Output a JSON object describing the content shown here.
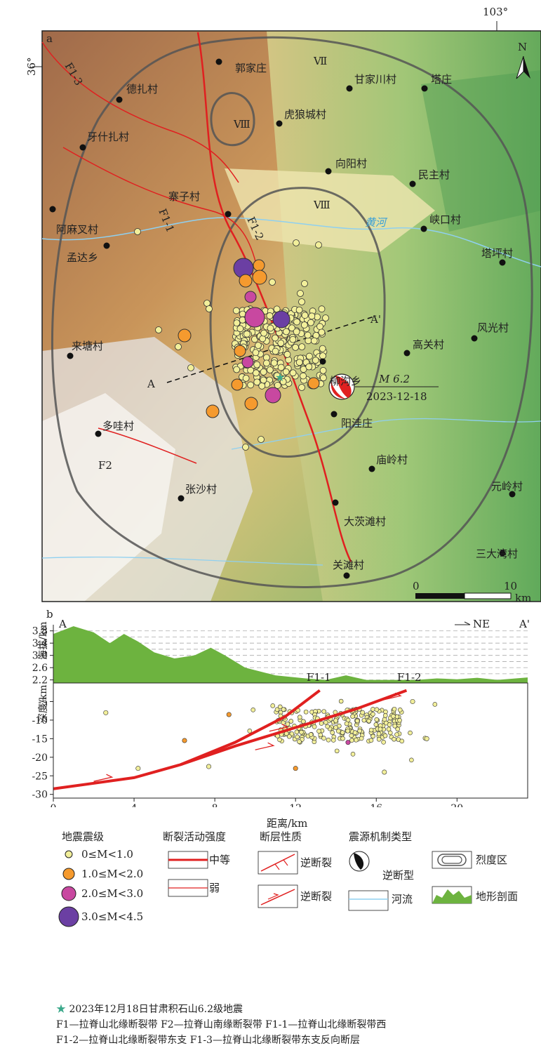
{
  "panel_a": {
    "label": "a",
    "lon_label": "103°",
    "lat_label": "36°",
    "north": "N",
    "intensity_labels": [
      "Ⅶ",
      "Ⅷ",
      "Ⅷ"
    ],
    "river_label": "黄河",
    "faults": [
      "F1-3",
      "F1-1",
      "F1-2",
      "F2"
    ],
    "profile_ends": [
      "A",
      "A'"
    ],
    "event": {
      "magnitude": "M 6.2",
      "date": "2023-12-18"
    },
    "scalebar": {
      "zero": "0",
      "ten": "10",
      "unit": "km"
    },
    "villages": [
      "郭家庄",
      "德扎村",
      "甘家川村",
      "塔庄",
      "虎狼城村",
      "牙什扎村",
      "向阳村",
      "民主村",
      "寨子村",
      "阿麻叉村",
      "峡口村",
      "孟达乡",
      "塔坪村",
      "风光村",
      "高关村",
      "来塘村",
      "柳沟乡",
      "多哇村",
      "阳洼庄",
      "庙岭村",
      "张沙村",
      "元岭村",
      "大茨滩村",
      "三大湾村",
      "关滩村"
    ]
  },
  "panel_b": {
    "label": "b",
    "profile_ends": [
      "A",
      "A'"
    ],
    "direction": "NE",
    "fault_labels": [
      "F1-1",
      "F1-2"
    ],
    "elevation_axis": {
      "label": "海拔/km",
      "ticks": [
        "3.8",
        "3.4",
        "3.0",
        "2.6",
        "2.2"
      ]
    },
    "depth_axis": {
      "label": "深度/km",
      "ticks": [
        "-5",
        "-10",
        "-15",
        "-20",
        "-25",
        "-30"
      ]
    },
    "distance_axis": {
      "label": "距离/km",
      "ticks": [
        "0",
        "4",
        "8",
        "12",
        "16",
        "20"
      ]
    }
  },
  "chart_data": {
    "type": "scatter",
    "xlabel": "距离/km",
    "ylabel": "深度/km",
    "xlim": [
      0,
      23.5
    ],
    "ylim": [
      -31,
      0
    ],
    "elevation_profile": {
      "ylabel": "海拔/km",
      "ylim": [
        2.1,
        4.0
      ],
      "x": [
        0,
        1,
        2,
        2.8,
        3.5,
        4.2,
        5,
        6,
        7,
        7.8,
        8.5,
        9.5,
        11,
        12.5,
        13.5,
        14.5,
        15.5,
        16.5,
        18,
        19,
        20,
        21,
        22,
        23.5
      ],
      "y": [
        3.7,
        3.95,
        3.75,
        3.4,
        3.7,
        3.45,
        3.1,
        2.9,
        3.0,
        3.25,
        3.0,
        2.6,
        2.35,
        2.25,
        2.2,
        2.35,
        2.2,
        2.2,
        2.2,
        2.25,
        2.22,
        2.27,
        2.2,
        2.28
      ]
    },
    "faults": [
      {
        "name": "F1-1",
        "x": [
          0,
          4,
          6.3,
          9,
          11.5,
          13.2
        ],
        "y": [
          -28.5,
          -25.5,
          -22,
          -16,
          -9,
          -2
        ]
      },
      {
        "name": "F1-2",
        "x": [
          6.3,
          9,
          12,
          15,
          17.5
        ],
        "y": [
          -22,
          -17,
          -12,
          -7,
          -2
        ]
      }
    ],
    "magnitude_classes": [
      {
        "range": "0≤M<1.0",
        "color": "#f2ef9a"
      },
      {
        "range": "1.0≤M<2.0",
        "color": "#f59a2e"
      },
      {
        "range": "2.0≤M<3.0",
        "color": "#c848a0"
      },
      {
        "range": "3.0≤M<4.5",
        "color": "#6b3fa3"
      }
    ],
    "highlight_points": [
      {
        "x": 2.6,
        "y": -8,
        "class": 0
      },
      {
        "x": 4.2,
        "y": -23,
        "class": 0
      },
      {
        "x": 6.5,
        "y": -15.5,
        "class": 1
      },
      {
        "x": 7.7,
        "y": -22.5,
        "class": 0
      },
      {
        "x": 8.7,
        "y": -8.5,
        "class": 1
      },
      {
        "x": 12,
        "y": -23,
        "class": 1
      },
      {
        "x": 14.6,
        "y": -16,
        "class": 2
      },
      {
        "x": 16.4,
        "y": -24,
        "class": 0
      },
      {
        "x": 18.5,
        "y": -15,
        "class": 0
      },
      {
        "x": 17.8,
        "y": -5,
        "class": 0
      }
    ]
  },
  "legend": {
    "magnitude_title": "地震震级",
    "magnitude_items": [
      "0≤M<1.0",
      "1.0≤M<2.0",
      "2.0≤M<3.0",
      "3.0≤M<4.5"
    ],
    "activity_title": "断裂活动强度",
    "activity_items": [
      "中等",
      "弱"
    ],
    "fault_type_title": "断层性质",
    "fault_type_items": [
      "逆断裂",
      "逆断裂"
    ],
    "focal_title": "震源机制类型",
    "focal_item": "逆断型",
    "intensity_item": "烈度区",
    "river_item": "河流",
    "profile_item": "地形剖面"
  },
  "captions": {
    "star": "2023年12月18日甘肃积石山6.2级地震",
    "line1": "F1—拉脊山北缘断裂带    F2—拉脊山南缘断裂带    F1-1—拉脊山北缘断裂带西",
    "line2": "F1-2—拉脊山北缘断裂带东支  F1-3—拉脊山北缘断裂带东支反向断层"
  }
}
